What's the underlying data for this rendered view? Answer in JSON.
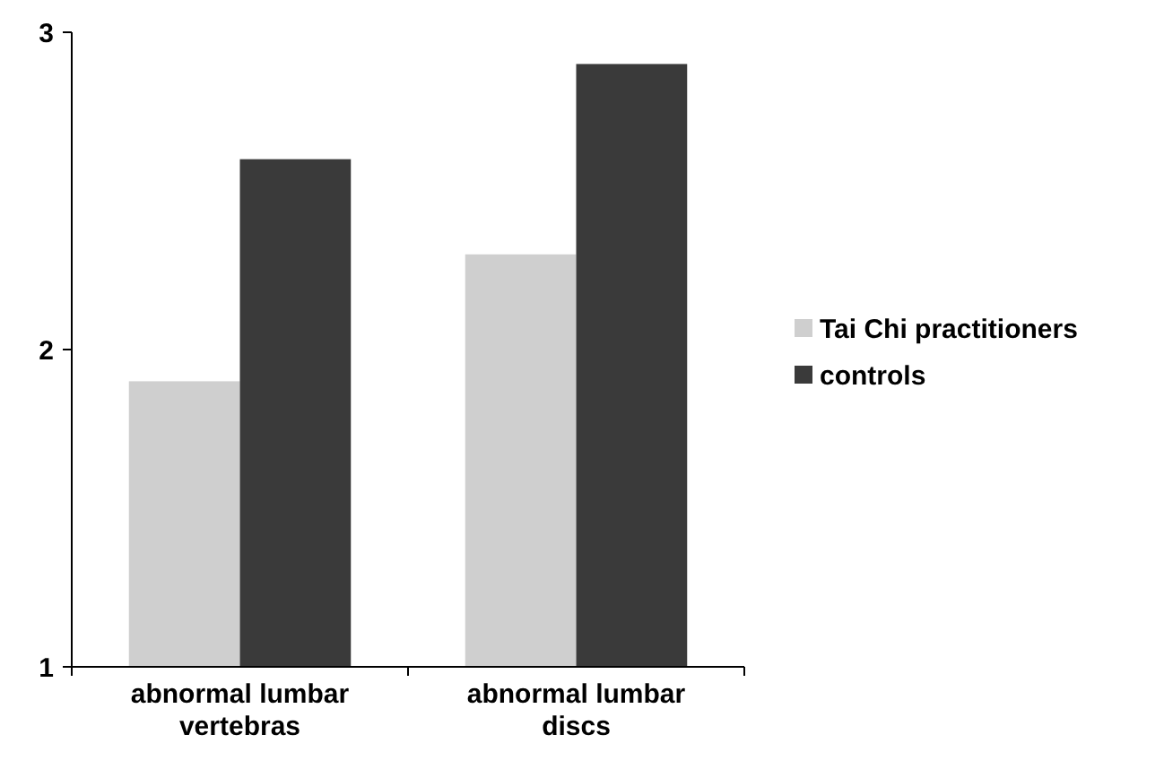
{
  "chart_data": {
    "type": "bar",
    "categories": [
      "abnormal lumbar vertebras",
      "abnormal lumbar discs"
    ],
    "series": [
      {
        "name": "Tai Chi practitioners",
        "color": "#cfcfcf",
        "values": [
          1.9,
          2.3
        ]
      },
      {
        "name": "controls",
        "color": "#3a3a3a",
        "values": [
          2.6,
          2.9
        ]
      }
    ],
    "ylim": [
      1,
      3
    ],
    "yticks": [
      1,
      2,
      3
    ],
    "grid": false,
    "legend": "right"
  }
}
